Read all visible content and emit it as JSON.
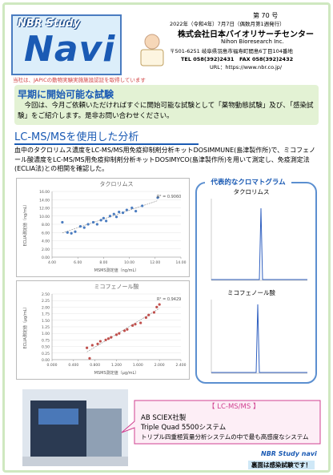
{
  "header": {
    "logo": {
      "line1": "NBR Study",
      "line2": "Navi"
    },
    "issue": "第 70 号",
    "date": "2022年（令和4年）7月7日（偶数月第1週発行）",
    "company": "株式会社日本バイオリサーチセンター",
    "company_en": "Nihon Bioresearch Inc.",
    "address": "〒501-6251 岐阜県羽島市福寿町間島6丁目104番地",
    "tel": "TEL 058(392)2431　FAX 058(392)2432",
    "url": "URL：https://www.nbr.co.jp/",
    "note": "当社は、JAPICの動物実験実施施設認証を取得しています"
  },
  "section1": {
    "title": "早期に開始可能な試験",
    "body": "今回は、今月ご依頼いただければすぐに開始可能な試験として「薬物動態試験」及び、「感染試験」をご紹介します。是非お問い合わせください。"
  },
  "section2": {
    "title": "LC-MS/MSを使用した分析",
    "body": "血中のタクロリムス濃度をLC-MS/MS用免疫抑制剤分析キットDOSIMMUNE(島津製作所)で、ミコフェノール酸濃度をLC-MS/MS用免疫抑制剤分析キットDOSIMYCO(島津製作所)を用いて測定し、免疫測定法(ECLIA法)との相関を確認した。"
  },
  "charts": [
    {
      "type": "scatter",
      "title": "タクロリムス",
      "x_label": "MSMS測定値（ng/mL）",
      "y_label": "ECLIA測定値（ng/mL）",
      "annotation": "R² = 0.9060",
      "color": "#4a7cc0",
      "x": [
        4.8,
        5.2,
        5.5,
        5.8,
        6.2,
        6.5,
        6.8,
        7.2,
        7.5,
        7.8,
        8.0,
        8.2,
        8.5,
        8.8,
        9.0,
        9.2,
        9.5,
        9.8,
        10.2,
        10.5,
        11.0,
        12.2
      ],
      "y": [
        8.5,
        6.0,
        5.8,
        6.2,
        7.5,
        7.2,
        8.0,
        8.5,
        8.0,
        9.0,
        9.5,
        8.8,
        10.0,
        10.5,
        9.8,
        11.0,
        10.8,
        11.5,
        12.0,
        11.2,
        12.5,
        14.5
      ],
      "xlim": [
        4,
        14
      ],
      "ylim": [
        0,
        16
      ],
      "xticks": [
        {
          "value": 4,
          "label": "4.00"
        },
        {
          "value": 6,
          "label": "6.00"
        },
        {
          "value": 8,
          "label": "8.00"
        },
        {
          "value": 10,
          "label": "10.00"
        },
        {
          "value": 12,
          "label": "12.00"
        },
        {
          "value": 14,
          "label": "14.00"
        }
      ],
      "yticks": [
        {
          "value": 0,
          "label": "0.00"
        },
        {
          "value": 2,
          "label": "2.00"
        },
        {
          "value": 4,
          "label": "4.00"
        },
        {
          "value": 6,
          "label": "6.00"
        },
        {
          "value": 8,
          "label": "8.00"
        },
        {
          "value": 10,
          "label": "10.00"
        },
        {
          "value": 12,
          "label": "12.00"
        },
        {
          "value": 14,
          "label": "14.00"
        },
        {
          "value": 16,
          "label": "16.00"
        }
      ]
    },
    {
      "type": "scatter",
      "title": "ミコフェノール酸",
      "x_label": "MSMS測定値（μg/mL）",
      "y_label": "ECLIA測定値（μg/mL）",
      "annotation": "R² = 0.9429",
      "color": "#c0504d",
      "x": [
        0.65,
        0.7,
        0.75,
        0.85,
        0.9,
        1.0,
        1.05,
        1.1,
        1.2,
        1.25,
        1.35,
        1.4,
        1.5,
        1.55,
        1.65,
        1.75,
        1.8,
        1.9,
        1.95,
        2.0
      ],
      "y": [
        0.45,
        0.05,
        0.55,
        0.6,
        0.7,
        0.75,
        0.8,
        0.85,
        0.95,
        1.0,
        1.1,
        1.15,
        1.3,
        1.35,
        1.4,
        1.6,
        1.7,
        1.8,
        2.0,
        2.1
      ],
      "xlim": [
        0,
        2.4
      ],
      "ylim": [
        0,
        2.5
      ],
      "xticks": [
        {
          "value": 0,
          "label": "0.000"
        },
        {
          "value": 0.4,
          "label": "0.400"
        },
        {
          "value": 0.8,
          "label": "0.800"
        },
        {
          "value": 1.2,
          "label": "1.200"
        },
        {
          "value": 1.6,
          "label": "1.600"
        },
        {
          "value": 2.0,
          "label": "2.000"
        },
        {
          "value": 2.4,
          "label": "2.400"
        }
      ],
      "yticks": [
        {
          "value": 0,
          "label": "0.00"
        },
        {
          "value": 0.25,
          "label": "0.25"
        },
        {
          "value": 0.5,
          "label": "0.50"
        },
        {
          "value": 0.75,
          "label": "0.75"
        },
        {
          "value": 1.0,
          "label": "1.00"
        },
        {
          "value": 1.25,
          "label": "1.25"
        },
        {
          "value": 1.5,
          "label": "1.50"
        },
        {
          "value": 1.75,
          "label": "1.75"
        },
        {
          "value": 2.0,
          "label": "2.00"
        },
        {
          "value": 2.25,
          "label": "2.25"
        },
        {
          "value": 2.5,
          "label": "2.50"
        }
      ]
    }
  ],
  "chromatogram": {
    "title": "代表的なクロマトグラム",
    "label1": "タクロリムス",
    "label2": "ミコフェノール酸"
  },
  "callout": {
    "title": "【 LC-MS/MS 】",
    "line1": "AB SCIEX社製",
    "line2": "Triple Quad 5500システム",
    "line3": "トリプル四重極質量分析システムの中で最も高感度なシステム"
  },
  "footer": {
    "logo": "NBR Study navi",
    "note": "裏面は感染試験です！"
  }
}
